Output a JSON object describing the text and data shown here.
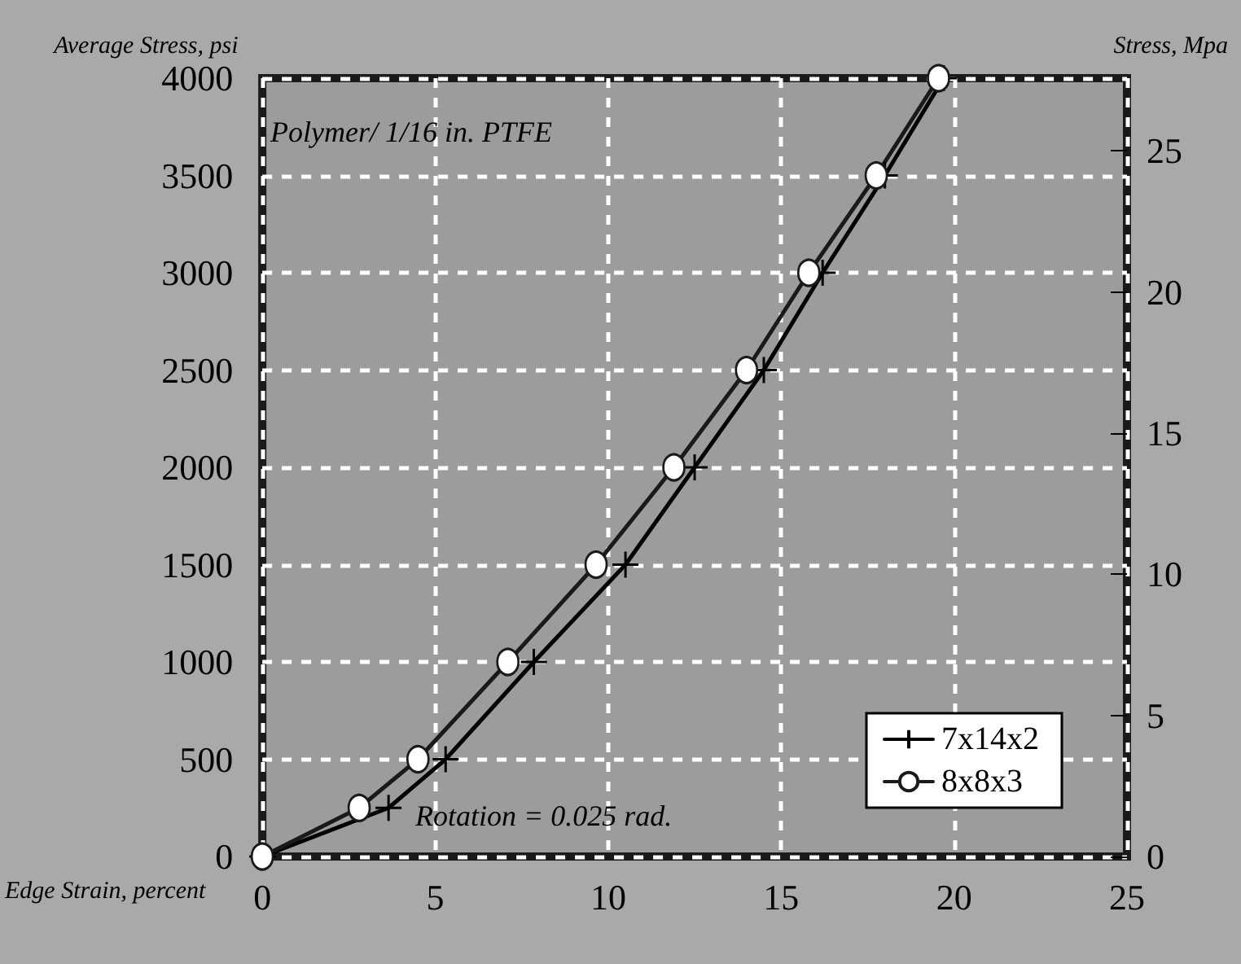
{
  "chart_data": {
    "type": "line",
    "xlabel": "Edge Strain, percent",
    "ylabel": "Average Stress, psi",
    "y2label": "Stress, Mpa",
    "annotations": [
      "Polymer/ 1/16 in. PTFE",
      "Rotation = 0.025 rad."
    ],
    "xlim": [
      0,
      25
    ],
    "xticks": [
      0,
      5,
      10,
      15,
      20,
      25
    ],
    "ylim": [
      0,
      4000
    ],
    "yticks": [
      0,
      500,
      1000,
      1500,
      2000,
      2500,
      3000,
      3500,
      4000
    ],
    "y2lim": [
      0,
      27.58
    ],
    "y2ticks": [
      0,
      5,
      10,
      15,
      20,
      25
    ],
    "grid": true,
    "legend": "bottom right",
    "series": [
      {
        "name": "7x14x2",
        "color": "#000000",
        "marker": "cross",
        "x": [
          0,
          3.65,
          5.3,
          7.85,
          10.5,
          12.5,
          14.5,
          16.2,
          18.0,
          19.7
        ],
        "values": [
          0,
          250,
          500,
          1000,
          1500,
          2000,
          2500,
          3000,
          3500,
          4000
        ]
      },
      {
        "name": "8x8x3",
        "color": "#1a1a1a",
        "marker": "circle",
        "x": [
          0,
          2.8,
          4.5,
          7.1,
          9.65,
          11.9,
          14.0,
          15.8,
          17.75,
          19.55
        ],
        "values": [
          0,
          250,
          500,
          1000,
          1500,
          2000,
          2500,
          3000,
          3500,
          4000
        ]
      }
    ]
  }
}
